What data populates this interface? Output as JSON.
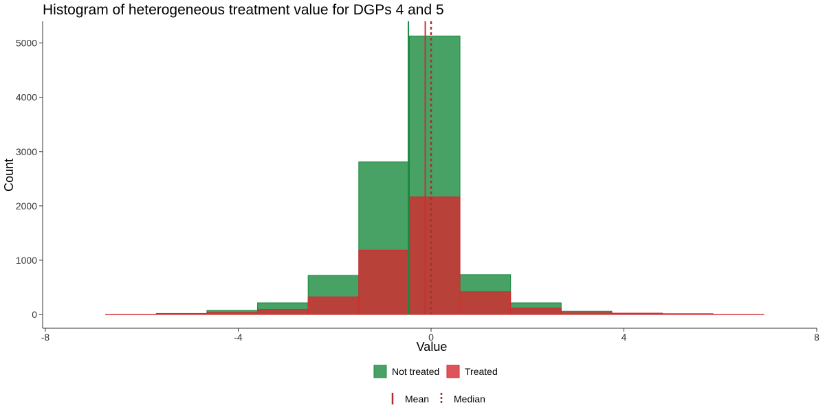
{
  "chart_data": {
    "type": "bar",
    "subtype": "overlaid-histogram",
    "title": "Histogram of heterogeneous treatment value for DGPs 4 and 5",
    "xlabel": "Value",
    "ylabel": "Count",
    "xlim": [
      -8,
      8
    ],
    "ylim": [
      0,
      5400
    ],
    "x_ticks": [
      -8,
      -4,
      0,
      4,
      8
    ],
    "y_ticks": [
      0,
      1000,
      2000,
      3000,
      4000,
      5000
    ],
    "x_tick_labels": [
      "-8",
      "-4",
      "0",
      "4",
      "8"
    ],
    "y_tick_labels": [
      "0",
      "1000",
      "2000",
      "3000",
      "4000",
      "5000"
    ],
    "grid": false,
    "bin_edges": [
      -6.75,
      -5.7,
      -4.65,
      -3.6,
      -2.55,
      -1.5,
      -0.45,
      0.6,
      1.65,
      2.7,
      3.75,
      4.8,
      5.85,
      6.9
    ],
    "series": [
      {
        "name": "Not treated",
        "color": "#1a8a3e",
        "fill_opacity": 0.8,
        "counts": [
          5,
          20,
          75,
          215,
          720,
          2810,
          5130,
          735,
          215,
          60,
          20,
          5,
          2
        ],
        "mean": -0.47
      },
      {
        "name": "Treated",
        "color": "#d42a2f",
        "fill_opacity": 0.8,
        "counts": [
          5,
          15,
          40,
          95,
          325,
          1185,
          2165,
          420,
          120,
          35,
          25,
          15,
          5
        ],
        "mean": -0.12
      }
    ],
    "median": 0.0,
    "median_color": "#a4342a",
    "legend": {
      "placement": "bottom",
      "fill_entries": [
        "Not treated",
        "Treated"
      ],
      "line_entries": [
        {
          "label": "Mean",
          "style": "solid"
        },
        {
          "label": "Median",
          "style": "dotted"
        }
      ],
      "line_color": "#a4342a"
    }
  }
}
